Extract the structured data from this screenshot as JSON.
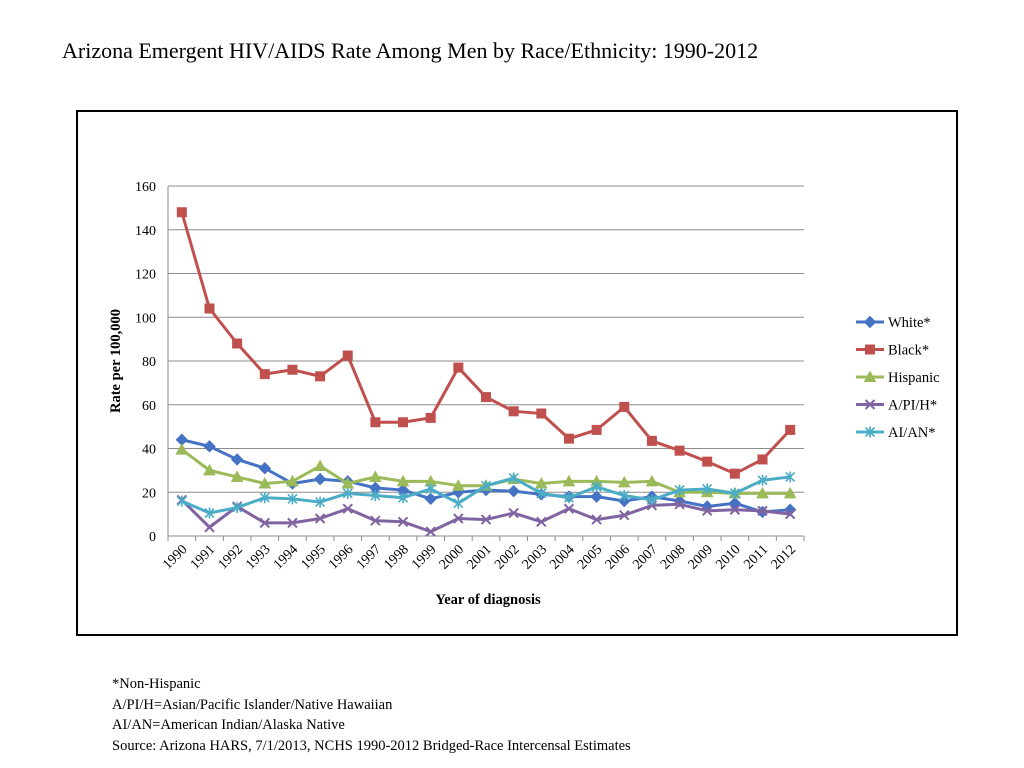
{
  "title": "Arizona Emergent HIV/AIDS Rate Among Men by Race/Ethnicity: 1990-2012",
  "footnotes": [
    "*Non-Hispanic",
    "A/PI/H=Asian/Pacific Islander/Native Hawaiian",
    "AI/AN=American Indian/Alaska Native",
    "Source: Arizona HARS, 7/1/2013, NCHS 1990-2012 Bridged-Race Intercensal Estimates"
  ],
  "chart_data": {
    "type": "line",
    "title": "",
    "xlabel": "Year of diagnosis",
    "ylabel": "Rate per 100,000",
    "ylim": [
      0,
      160
    ],
    "yticks": [
      0,
      20,
      40,
      60,
      80,
      100,
      120,
      140,
      160
    ],
    "grid": true,
    "legend": "right",
    "categories": [
      "1990",
      "1991",
      "1992",
      "1993",
      "1994",
      "1995",
      "1996",
      "1997",
      "1998",
      "1999",
      "2000",
      "2001",
      "2002",
      "2003",
      "2004",
      "2005",
      "2006",
      "2007",
      "2008",
      "2009",
      "2010",
      "2011",
      "2012"
    ],
    "series": [
      {
        "name": "White*",
        "color": "#4472C4",
        "marker": "diamond",
        "values": [
          44,
          41,
          35,
          31,
          24,
          26,
          25,
          22,
          21,
          17,
          20,
          21,
          20.5,
          19,
          18,
          18,
          16,
          18,
          16,
          13.5,
          15,
          11,
          12
        ]
      },
      {
        "name": "Black*",
        "color": "#C0504D",
        "marker": "square",
        "values": [
          148,
          104,
          88,
          74,
          76,
          73,
          82.5,
          52,
          52,
          54,
          77,
          63.5,
          57,
          56,
          44.5,
          48.5,
          59,
          43.5,
          39,
          34,
          28.5,
          35,
          48.5
        ]
      },
      {
        "name": "Hispanic",
        "color": "#9BBB59",
        "marker": "triangle",
        "values": [
          39.5,
          30,
          27,
          24,
          25,
          32,
          24,
          27,
          25,
          25,
          23,
          23,
          26,
          24,
          25,
          25,
          24.5,
          25,
          20,
          20,
          19.5,
          19.5,
          19.5
        ]
      },
      {
        "name": "A/PI/H*",
        "color": "#8064A2",
        "marker": "x",
        "values": [
          16.5,
          4,
          13.5,
          6,
          6,
          8,
          12.5,
          7,
          6.5,
          2,
          8,
          7.5,
          10.5,
          6.5,
          12.5,
          7.5,
          9.5,
          14,
          14.5,
          11.5,
          12,
          11.5,
          10
        ]
      },
      {
        "name": "AI/AN*",
        "color": "#4BACC6",
        "marker": "asterisk",
        "values": [
          16,
          10.5,
          13,
          17.5,
          17,
          15.5,
          19.5,
          18.5,
          17.5,
          21.5,
          15,
          23,
          26.5,
          19.5,
          17.5,
          22.5,
          18.5,
          16.5,
          21,
          21.5,
          19.5,
          25.5,
          27
        ]
      }
    ]
  }
}
